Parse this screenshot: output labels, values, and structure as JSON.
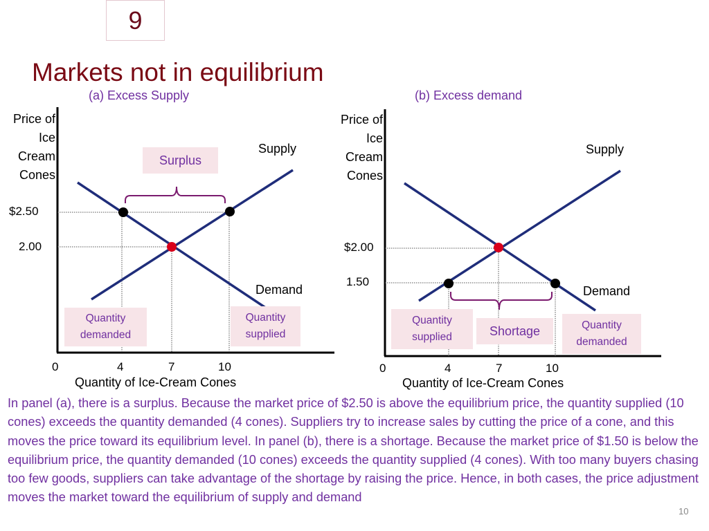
{
  "slide_number": "9",
  "title": "Markets not in equilibrium",
  "panel_a": {
    "title": "(a) Excess Supply",
    "y_axis_label": [
      "Price of",
      "Ice",
      "Cream",
      "Cones"
    ],
    "x_axis_label": "Quantity of Ice-Cream Cones",
    "x_ticks": [
      "0",
      "4",
      "7",
      "10"
    ],
    "price_high": "$2.50",
    "price_eq": "2.00",
    "supply_label": "Supply",
    "demand_label": "Demand",
    "gap_label": "Surplus",
    "box_left": "Quantity demanded",
    "box_right": "Quantity supplied",
    "colors": {
      "curve": "#1f2d7a",
      "equilibrium_dot": "#d9001b",
      "bracket": "#7b1a6e"
    }
  },
  "panel_b": {
    "title": "(b) Excess demand",
    "y_axis_label": [
      "Price of",
      "Ice",
      "Cream",
      "Cones"
    ],
    "x_axis_label": "Quantity of Ice-Cream Cones",
    "x_ticks": [
      "0",
      "4",
      "7",
      "10"
    ],
    "price_eq": "$2.00",
    "price_low": "1.50",
    "supply_label": "Supply",
    "demand_label": "Demand",
    "gap_label": "Shortage",
    "box_left": "Quantity supplied",
    "box_right": "Quantity demanded"
  },
  "caption": "In panel (a), there is a surplus. Because the market price of $2.50 is above the equilibrium price, the quantity supplied (10 cones) exceeds the quantity demanded (4 cones). Suppliers try to increase sales by cutting the price of a cone, and this moves the price toward its equilibrium level. In panel (b), there is a shortage. Because the market price of $1.50 is below the equilibrium price, the quantity demanded (10 cones) exceeds the quantity supplied (4 cones). With too many buyers chasing too few goods, suppliers can take advantage of the shortage by raising the price. Hence, in both cases, the price adjustment moves the market toward the equilibrium of supply and demand",
  "page_number": "10"
}
